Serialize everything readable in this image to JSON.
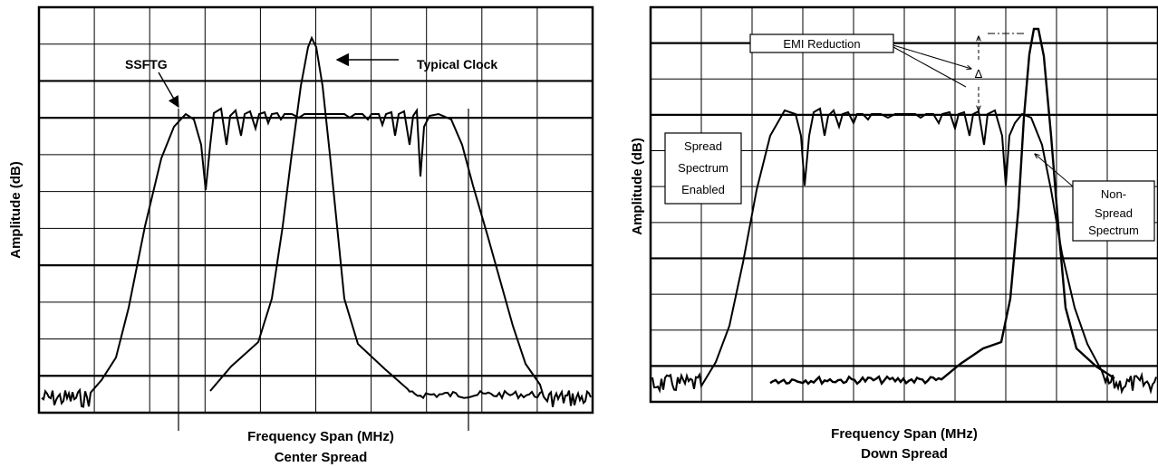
{
  "left_panel": {
    "ylabel": "Amplitude (dB)",
    "xlabel": "Frequency Span (MHz)",
    "caption": "Center Spread",
    "callouts": {
      "ssftg": "SSFTG",
      "typical_clock": "Typical Clock"
    }
  },
  "right_panel": {
    "ylabel": "Amplitude (dB)",
    "xlabel": "Frequency Span (MHz)",
    "caption": "Down Spread",
    "callouts": {
      "emi_reduction": "EMI Reduction",
      "delta": "Δ",
      "spread_enabled_lines": [
        "Spread",
        "Spectrum",
        "Enabled"
      ],
      "non_spread_lines": [
        "Non-",
        "Spread",
        "Spectrum"
      ]
    }
  }
}
